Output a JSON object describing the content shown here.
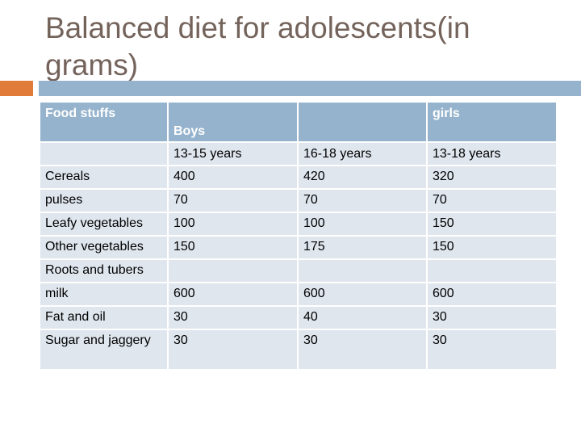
{
  "slide": {
    "title": "Balanced diet for adolescents(in grams)"
  },
  "table": {
    "header": {
      "food": "Food stuffs",
      "boys": "Boys",
      "blank": "",
      "girls": "girls"
    },
    "subheader": [
      "",
      "13-15 years",
      "16-18 years",
      "13-18 years"
    ],
    "rows": [
      [
        "Cereals",
        "400",
        "420",
        "320"
      ],
      [
        "pulses",
        "70",
        "70",
        "70"
      ],
      [
        "Leafy vegetables",
        "100",
        "100",
        "150"
      ],
      [
        "Other vegetables",
        "150",
        "175",
        "150"
      ],
      [
        "Roots and tubers",
        "",
        "",
        ""
      ],
      [
        "milk",
        "600",
        "600",
        "600"
      ],
      [
        "Fat and oil",
        "30",
        "40",
        "30"
      ],
      [
        "Sugar and jaggery",
        "30",
        "30",
        "30"
      ]
    ]
  },
  "colors": {
    "title": "#74635b",
    "accent_orange": "#e07b39",
    "accent_blue": "#95b3cc",
    "row_fill": "#dfe6ee"
  }
}
